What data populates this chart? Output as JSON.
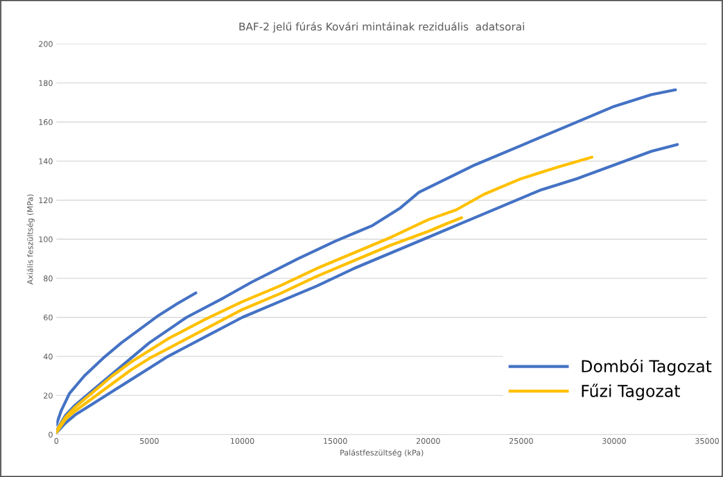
{
  "chart_data": {
    "type": "line",
    "title": "BAF-2 jelű fúrás Kovári mintáinak reziduális  adatsorai",
    "xlabel": "Palástfeszültség (kPa)",
    "ylabel": "Axiális feszültség (MPa)",
    "xlim": [
      0,
      35000
    ],
    "xticks": [
      0,
      5000,
      10000,
      15000,
      20000,
      25000,
      30000,
      35000
    ],
    "ylim": [
      0,
      200
    ],
    "yticks": [
      0,
      20,
      40,
      60,
      80,
      100,
      120,
      140,
      160,
      180,
      200
    ],
    "grid": "y",
    "legend": "bottom right",
    "marker": "none",
    "line_style": "solid",
    "series": [
      {
        "name": "Dombói Tagozat",
        "color": "#4472c4",
        "x": [
          0,
          250,
          700,
          1500,
          2500,
          3500,
          4500,
          5500,
          6500,
          7500
        ],
        "values": [
          5,
          12,
          21,
          30,
          39,
          47,
          54,
          61,
          67,
          72.5
        ]
      },
      {
        "color": "#4472c4",
        "x": [
          0,
          500,
          1000,
          2000,
          3000,
          4000,
          5000,
          7000,
          9000,
          10500,
          13000,
          15000,
          17000,
          18500,
          19500,
          21000,
          22500,
          25000,
          27500,
          30000,
          32000,
          33300
        ],
        "values": [
          2,
          10,
          15,
          23,
          31,
          39,
          47,
          60,
          70,
          78,
          90,
          99,
          107,
          116,
          124,
          131,
          138,
          148,
          158,
          168,
          174,
          176.5
        ]
      },
      {
        "color": "#4472c4",
        "x": [
          0,
          500,
          1000,
          2000,
          3000,
          4000,
          5000,
          6000,
          7000,
          8000,
          10000,
          12000,
          14000,
          16000,
          18000,
          20000,
          22000,
          24000,
          26000,
          28000,
          30000,
          32000,
          33400
        ],
        "values": [
          1,
          6,
          10,
          16,
          22,
          28,
          34,
          40,
          45,
          50,
          60,
          68,
          76,
          85,
          93,
          101,
          109,
          117,
          125,
          131,
          138,
          145,
          148.5
        ]
      },
      {
        "name": "Fűzi Tagozat",
        "color": "#ffc000",
        "x": [
          0,
          500,
          1000,
          2000,
          3000,
          4000,
          5000,
          6000,
          8000,
          10000,
          12000,
          14000,
          16000,
          18000,
          20000,
          21500,
          23000,
          25000,
          27000,
          28800
        ],
        "values": [
          2,
          9,
          14,
          22,
          30,
          37,
          43,
          49,
          59,
          68,
          76,
          85,
          93,
          101,
          110,
          115,
          123,
          131,
          137,
          142
        ]
      },
      {
        "color": "#ffc000",
        "x": [
          0,
          500,
          1000,
          2000,
          3000,
          4000,
          5000,
          6000,
          8000,
          10000,
          12000,
          14000,
          16000,
          18000,
          20000,
          21000,
          21800
        ],
        "values": [
          1,
          8,
          12,
          19,
          26,
          33,
          39,
          44,
          54,
          64,
          72,
          81,
          89,
          97,
          104,
          108,
          111
        ]
      }
    ]
  }
}
